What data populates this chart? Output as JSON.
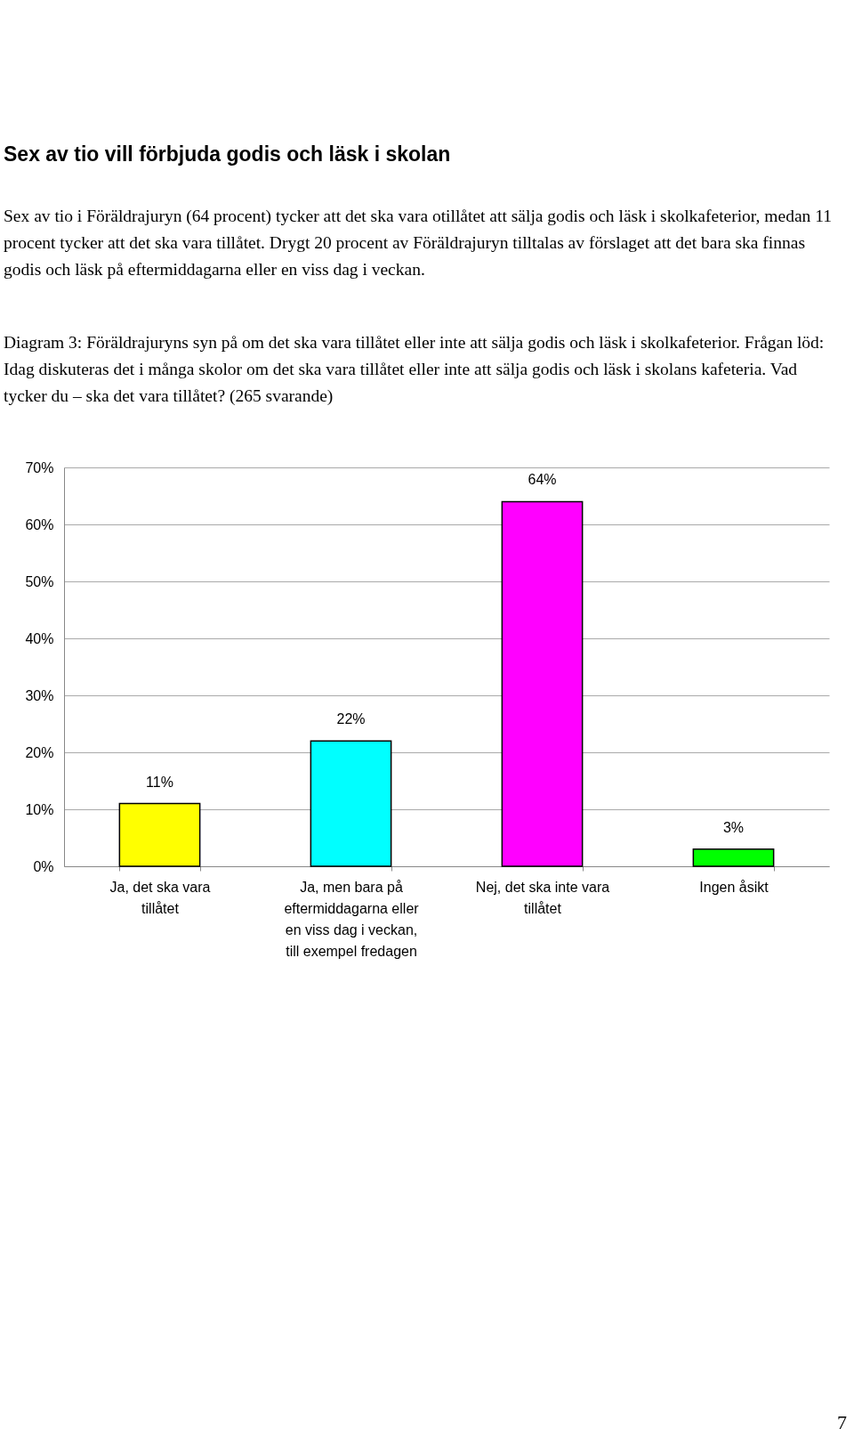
{
  "chart_data": {
    "type": "bar",
    "title": "Sex av tio vill förbjuda godis och läsk i skolan",
    "subtitle": "Sex av tio i Föräldrajuryn (64 procent) tycker att det ska vara otillåtet att sälja godis och läsk i skolkafeterior, medan 11 procent tycker att det ska vara tillåtet. Drygt 20 procent av Föräldrajuryn tilltalas av förslaget att det bara ska finnas godis och läsk på eftermiddagarna eller en viss dag i veckan.",
    "annotations": [
      "Diagram 3: Föräldrajuryns syn på om det ska vara tillåtet eller inte att sälja godis och läsk i skolkafeterior. Frågan löd: Idag diskuteras det i många skolor om det ska vara tillåtet eller inte att sälja godis och läsk i skolans kafeteria. Vad tycker du – ska det vara tillåtet? (265 svarande)",
      "7"
    ],
    "categories": [
      "Ja, det ska vara tillåtet",
      "Ja, men bara på eftermiddagarna eller en viss dag i veckan, till exempel fredagen",
      "Nej, det ska inte vara tillåtet",
      "Ingen åsikt"
    ],
    "values": [
      11,
      22,
      64,
      3
    ],
    "colors": [
      "#ffff00",
      "#00ffff",
      "#ff00ff",
      "#00ff00"
    ],
    "value_labels": [
      "11%",
      "22%",
      "64%",
      "3%"
    ],
    "ylim": [
      0,
      70
    ],
    "yticks": [
      {
        "value": 0,
        "label": "0%"
      },
      {
        "value": 10,
        "label": "10%"
      },
      {
        "value": 20,
        "label": "20%"
      },
      {
        "value": 30,
        "label": "30%"
      },
      {
        "value": 40,
        "label": "40%"
      },
      {
        "value": 50,
        "label": "50%"
      },
      {
        "value": 60,
        "label": "60%"
      },
      {
        "value": 70,
        "label": "70%"
      }
    ],
    "grid": "y"
  }
}
